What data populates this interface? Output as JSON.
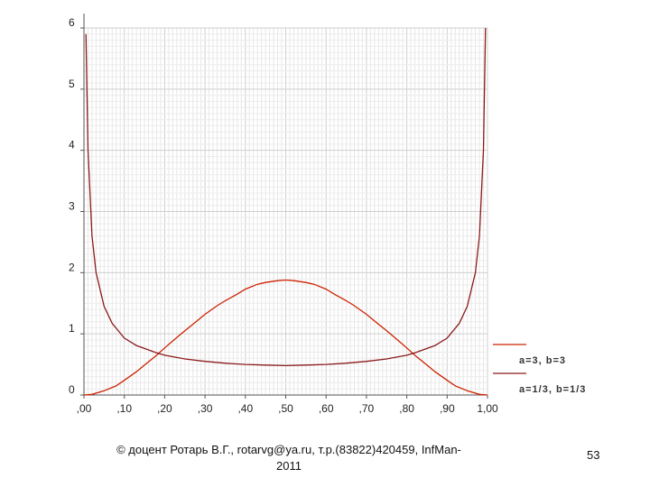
{
  "chart_data": {
    "type": "line",
    "xlim": [
      0,
      1
    ],
    "ylim": [
      0,
      6
    ],
    "x_ticks": [
      ",00",
      ",10",
      ",20",
      ",30",
      ",40",
      ",50",
      ",60",
      ",70",
      ",80",
      ",90",
      "1,00"
    ],
    "y_ticks": [
      "0",
      "1",
      "2",
      "3",
      "4",
      "5",
      "6"
    ],
    "grid": true,
    "legend_position": "right",
    "series": [
      {
        "name": "a=3, b=3",
        "color": "#cc2200",
        "x": [
          0.0,
          0.02,
          0.05,
          0.08,
          0.1,
          0.13,
          0.15,
          0.18,
          0.2,
          0.23,
          0.25,
          0.28,
          0.3,
          0.33,
          0.35,
          0.38,
          0.4,
          0.43,
          0.45,
          0.48,
          0.5,
          0.52,
          0.55,
          0.57,
          0.6,
          0.62,
          0.65,
          0.67,
          0.7,
          0.72,
          0.75,
          0.77,
          0.8,
          0.82,
          0.85,
          0.87,
          0.9,
          0.92,
          0.95,
          0.98,
          1.0
        ],
        "y": [
          0.0,
          0.01,
          0.07,
          0.15,
          0.24,
          0.38,
          0.49,
          0.65,
          0.77,
          0.94,
          1.05,
          1.21,
          1.32,
          1.46,
          1.54,
          1.65,
          1.73,
          1.81,
          1.84,
          1.87,
          1.88,
          1.87,
          1.84,
          1.81,
          1.73,
          1.65,
          1.54,
          1.46,
          1.32,
          1.21,
          1.05,
          0.94,
          0.77,
          0.65,
          0.49,
          0.38,
          0.24,
          0.15,
          0.07,
          0.01,
          0.0
        ]
      },
      {
        "name": "a=1/3, b=1/3",
        "color": "#8b1a1a",
        "x": [
          0.005,
          0.01,
          0.02,
          0.03,
          0.05,
          0.07,
          0.1,
          0.13,
          0.15,
          0.18,
          0.2,
          0.25,
          0.3,
          0.35,
          0.4,
          0.45,
          0.5,
          0.55,
          0.6,
          0.65,
          0.7,
          0.75,
          0.8,
          0.82,
          0.85,
          0.87,
          0.9,
          0.93,
          0.95,
          0.97,
          0.98,
          0.99,
          0.995
        ],
        "y": [
          5.9,
          4.0,
          2.6,
          2.0,
          1.45,
          1.17,
          0.93,
          0.81,
          0.76,
          0.69,
          0.65,
          0.59,
          0.55,
          0.52,
          0.5,
          0.49,
          0.48,
          0.49,
          0.5,
          0.52,
          0.55,
          0.59,
          0.65,
          0.69,
          0.76,
          0.81,
          0.93,
          1.17,
          1.45,
          2.0,
          2.6,
          4.0,
          6.0
        ]
      }
    ]
  },
  "footer": {
    "line1": "© доцент Ротарь В.Г., rotarvg@ya.ru, т.р.(83822)420459, InfMan-",
    "line2": "2011"
  },
  "page_number": "53"
}
